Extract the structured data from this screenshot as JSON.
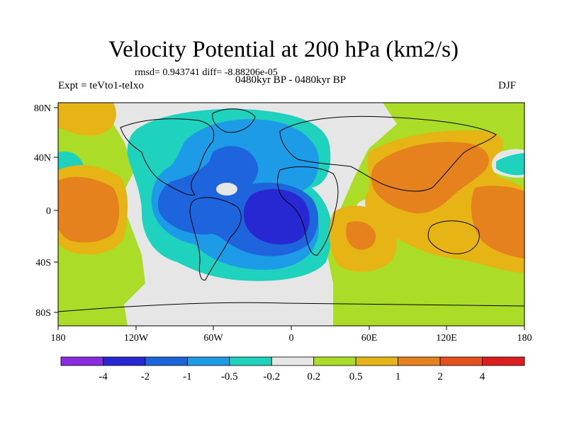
{
  "header": {
    "title": "Velocity Potential at 200 hPa (km2/s)",
    "stats": "rmsd= 0.943741 diff= -8.88206e-05",
    "experiment": "Expt = teVto1-teIxo",
    "period": "0480kyr BP - 0480kyr BP",
    "season": "DJF"
  },
  "colors": {
    "bins": [
      "#8b2be2",
      "#2828d2",
      "#1e64dc",
      "#1e9be6",
      "#1ed2be",
      "#e6e6e6",
      "#aadc28",
      "#e6b414",
      "#e6821e",
      "#e6501e",
      "#dc1e1e"
    ],
    "coast": "#000000",
    "background": "#ffffff"
  },
  "chart_data": {
    "type": "heatmap",
    "title": "Velocity Potential at 200 hPa (km2/s)",
    "variable": "velocity potential difference",
    "units": "km2/s",
    "x_ticks": [
      "180",
      "120W",
      "60W",
      "0",
      "60E",
      "120E",
      "180"
    ],
    "y_ticks": [
      "80N",
      "40N",
      "0",
      "40S",
      "80S"
    ],
    "xlim": [
      -180,
      180
    ],
    "ylim": [
      -90,
      90
    ],
    "colorbar": {
      "levels": [
        "-4",
        "-2",
        "-1",
        "-0.5",
        "-0.2",
        "0.2",
        "0.5",
        "1",
        "2",
        "4"
      ],
      "bin_count": 11
    },
    "features": [
      {
        "name": "negative center over tropical Atlantic / Gulf of Guinea",
        "lon": -20,
        "lat": -2,
        "level": "< -2"
      },
      {
        "name": "positive maximum over western Pacific / Maritime Continent",
        "lon": 130,
        "lat": 20,
        "level": "1 to 2"
      },
      {
        "name": "positive maximum over eastern Pacific",
        "lon": -150,
        "lat": -5,
        "level": "1 to 2"
      },
      {
        "name": "positive maximum over Indian Ocean",
        "lon": 40,
        "lat": -22,
        "level": "0.5 to 1"
      }
    ]
  }
}
